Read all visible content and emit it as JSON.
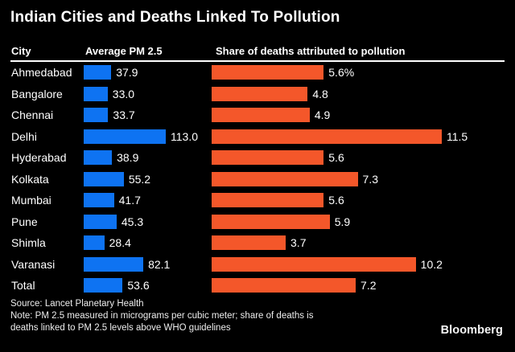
{
  "title": "Indian Cities and Deaths Linked To Pollution",
  "columns": {
    "city": "City",
    "pm25": "Average PM 2.5",
    "deaths": "Share of deaths attributed to pollution"
  },
  "chart_data": {
    "type": "bar",
    "orientation": "horizontal",
    "title": "Indian Cities and Deaths Linked To Pollution",
    "categories": [
      "Ahmedabad",
      "Bangalore",
      "Chennai",
      "Delhi",
      "Hyderabad",
      "Kolkata",
      "Mumbai",
      "Pune",
      "Shimla",
      "Varanasi",
      "Total"
    ],
    "series": [
      {
        "name": "Average PM 2.5",
        "color": "#0e73f2",
        "values": [
          37.9,
          33.0,
          33.7,
          113.0,
          38.9,
          55.2,
          41.7,
          45.3,
          28.4,
          82.1,
          53.6
        ],
        "labels": [
          "37.9",
          "33.0",
          "33.7",
          "113.0",
          "38.9",
          "55.2",
          "41.7",
          "45.3",
          "28.4",
          "82.1",
          "53.6"
        ],
        "xlim": [
          0,
          113
        ]
      },
      {
        "name": "Share of deaths attributed to pollution",
        "color": "#f4572a",
        "values": [
          5.6,
          4.8,
          4.9,
          11.5,
          5.6,
          7.3,
          5.6,
          5.9,
          3.7,
          10.2,
          7.2
        ],
        "labels": [
          "5.6%",
          "4.8",
          "4.9",
          "11.5",
          "5.6",
          "7.3",
          "5.6",
          "5.9",
          "3.7",
          "10.2",
          "7.2"
        ],
        "xlim": [
          0,
          11.5
        ]
      }
    ],
    "grid": false,
    "legend": "none",
    "value_labels": "end-of-bar"
  },
  "footer": {
    "source": "Source: Lancet Planetary Health",
    "note_lines": [
      "Note: PM 2.5 measured in micrograms per cubic meter; share of deaths is",
      "deaths linked to PM 2.5 levels above WHO guidelines"
    ],
    "brand": "Bloomberg"
  },
  "colors": {
    "background": "#000000",
    "text": "#ffffff",
    "rule": "#ffffff",
    "pm25_bar": "#0e73f2",
    "deaths_bar": "#f4572a"
  }
}
